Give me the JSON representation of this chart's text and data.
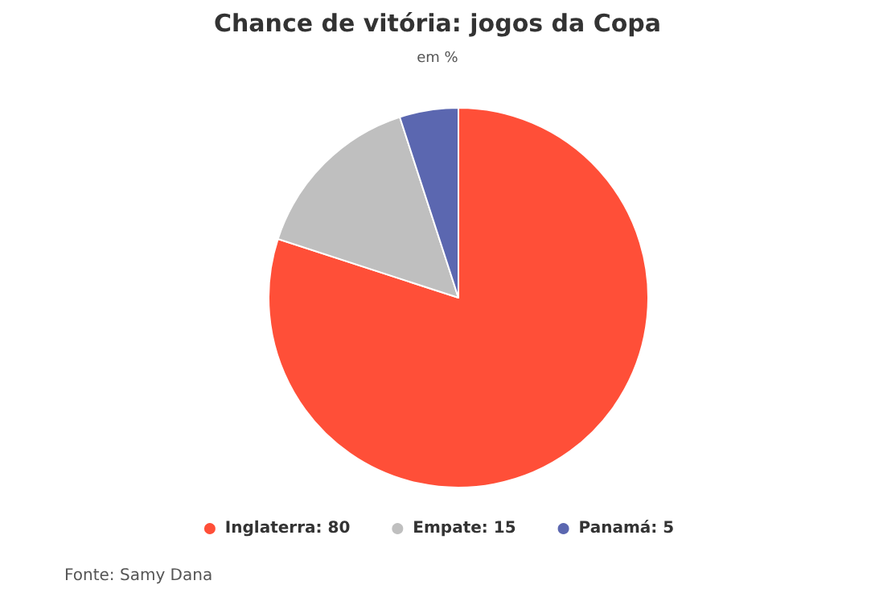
{
  "chart_data": {
    "type": "pie",
    "title": "Chance de vitória: jogos da Copa",
    "subtitle": "em %",
    "categories": [
      "Inglaterra: 80",
      "Empate: 15",
      "Panamá: 5"
    ],
    "values": [
      80,
      15,
      5
    ],
    "colors": [
      "#ff4f38",
      "#bfbfbf",
      "#5b67b0"
    ],
    "legend": "bottom",
    "annotations": [
      "Fonte: Samy Dana"
    ]
  }
}
